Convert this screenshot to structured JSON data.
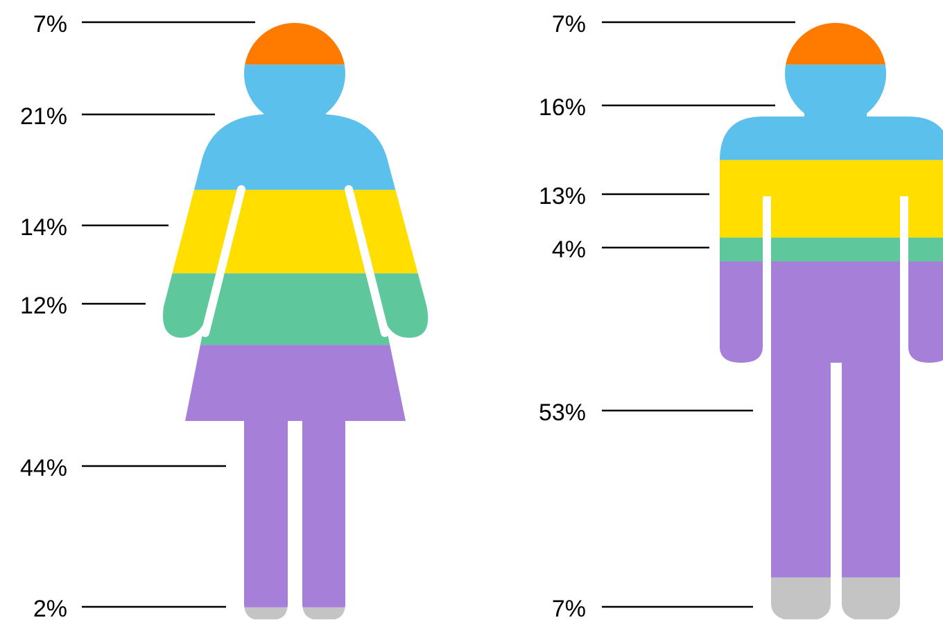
{
  "chart_data": [
    {
      "type": "pictograph",
      "values": [
        7,
        21,
        14,
        12,
        44,
        2
      ],
      "value_labels": [
        "7%",
        "21%",
        "14%",
        "12%",
        "44%",
        "2%"
      ],
      "colors": [
        "#ff7b00",
        "#5bc0eb",
        "#ffde00",
        "#5ec79c",
        "#a57fd8",
        "#c4c4c4"
      ]
    },
    {
      "type": "pictograph",
      "values": [
        7,
        16,
        13,
        4,
        53,
        7
      ],
      "value_labels": [
        "7%",
        "16%",
        "13%",
        "4%",
        "53%",
        "7%"
      ],
      "colors": [
        "#ff7b00",
        "#5bc0eb",
        "#ffde00",
        "#5ec79c",
        "#a57fd8",
        "#c4c4c4"
      ]
    }
  ]
}
